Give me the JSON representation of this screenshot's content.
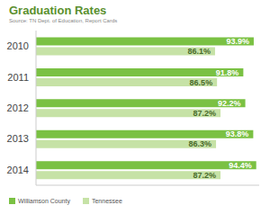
{
  "chart_data": {
    "type": "bar",
    "title": "Graduation Rates",
    "subtitle": "Source: TN Dept. of Education, Report Cards",
    "orientation": "horizontal",
    "categories": [
      "2010",
      "2011",
      "2012",
      "2013",
      "2014"
    ],
    "series": [
      {
        "name": "Williamson County",
        "color": "#7ac143",
        "values": [
          93.9,
          91.8,
          92.2,
          93.8,
          94.4
        ],
        "value_labels": [
          "93.9%",
          "91.8%",
          "92.2%",
          "93.8%",
          "94.4%"
        ]
      },
      {
        "name": "Tennessee",
        "color": "#c6e2a6",
        "values": [
          86.1,
          86.5,
          87.2,
          86.3,
          87.2
        ],
        "value_labels": [
          "86.1%",
          "86.5%",
          "87.2%",
          "86.3%",
          "87.2%"
        ]
      }
    ],
    "xlim": [
      50,
      95
    ],
    "data_labels": true,
    "tick_labels": "y",
    "grid": false,
    "legend": "bottom-left"
  }
}
